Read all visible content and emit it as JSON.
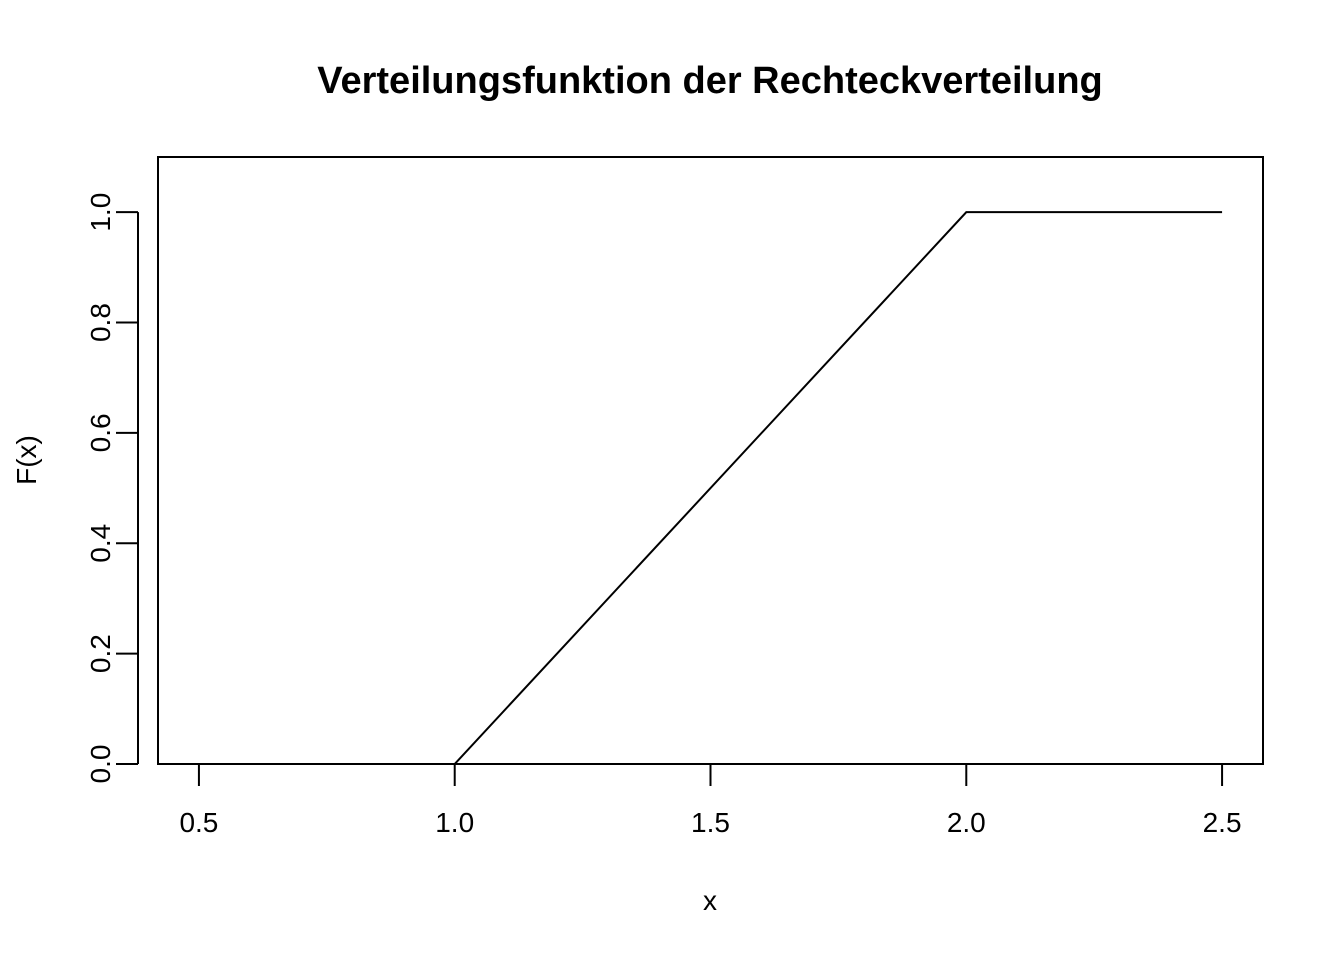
{
  "chart_data": {
    "type": "line",
    "title": "Verteilungsfunktion der Rechteckverteilung",
    "xlabel": "x",
    "ylabel": "F(x)",
    "xlim": [
      0.42,
      2.58
    ],
    "ylim": [
      0.0,
      1.1
    ],
    "x_ticks": [
      "0.5",
      "1.0",
      "1.5",
      "2.0",
      "2.5"
    ],
    "y_ticks": [
      "0.0",
      "0.2",
      "0.4",
      "0.6",
      "0.8",
      "1.0"
    ],
    "grid": false,
    "series": [
      {
        "x": [
          0.5,
          1.0,
          2.0,
          2.5
        ],
        "y": [
          0.0,
          0.0,
          1.0,
          1.0
        ]
      }
    ],
    "colors": {
      "line": "#000000",
      "axis": "#000000",
      "background": "#ffffff"
    }
  }
}
